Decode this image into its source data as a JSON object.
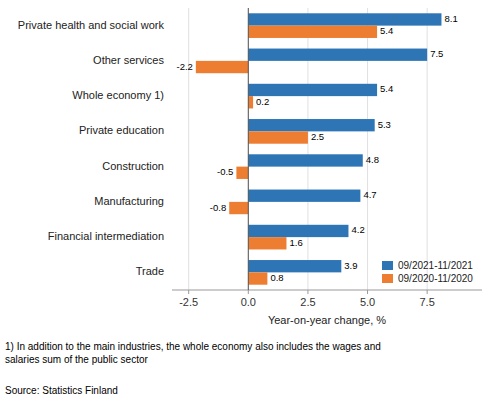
{
  "chart_data": {
    "type": "bar",
    "orientation": "horizontal",
    "categories": [
      "Private health and social work",
      "Other services",
      "Whole economy 1)",
      "Private education",
      "Construction",
      "Manufacturing",
      "Financial intermediation",
      "Trade"
    ],
    "series": [
      {
        "name": "09/2021-11/2021",
        "color": "#2E75B6",
        "values": [
          8.1,
          7.5,
          5.4,
          5.3,
          4.8,
          4.7,
          4.2,
          3.9
        ]
      },
      {
        "name": "09/2020-11/2020",
        "color": "#ED7D31",
        "values": [
          5.4,
          -2.2,
          0.2,
          2.5,
          -0.5,
          -0.8,
          1.6,
          0.8
        ]
      }
    ],
    "xlabel": "Year-on-year change, %",
    "xlim": [
      -3.2,
      9.8
    ],
    "xticks": [
      -2.5,
      {
        "value": 0,
        "label": "0.0"
      },
      2.5,
      {
        "value": 5,
        "label": "5.0"
      },
      7.5
    ],
    "grid": true,
    "legend": "lower right",
    "data_labels": true,
    "annotations": [
      "1) In addition to the main industries, the whole economy also includes the wages and\nsalaries sum of the public sector",
      "Source: Statistics Finland"
    ]
  }
}
